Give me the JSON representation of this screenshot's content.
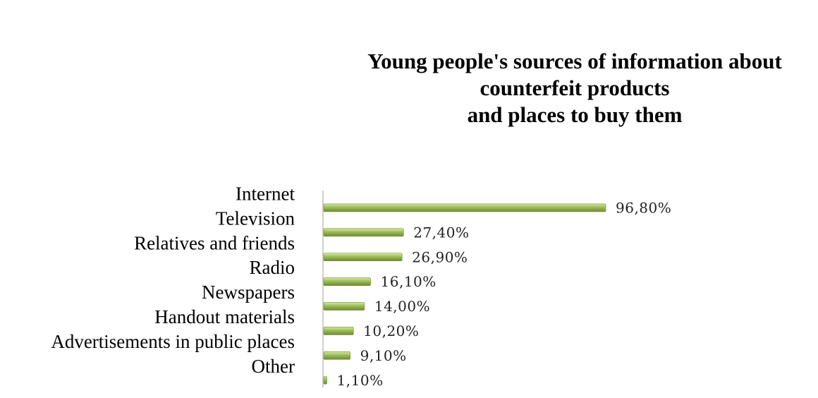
{
  "chart_data": {
    "type": "bar",
    "orientation": "horizontal",
    "title_lines": [
      "Young people's sources of information about",
      "counterfeit products",
      "and places to buy them"
    ],
    "categories": [
      "Internet",
      "Television",
      "Relatives and friends",
      "Radio",
      "Newspapers",
      "Handout materials",
      "Advertisements in public places",
      "Other"
    ],
    "values": [
      96.8,
      27.4,
      26.9,
      16.1,
      14.0,
      10.2,
      9.1,
      1.1
    ],
    "value_labels": [
      "96,80%",
      "27,40%",
      "26,90%",
      "16,10%",
      "14,00%",
      "10,20%",
      "9,10%",
      "1,10%"
    ],
    "xlim": [
      0,
      100
    ],
    "grid": false,
    "legend": "none",
    "colors": {
      "bar": "#9bbb59",
      "bar_light": "#cfe39a",
      "bar_dark": "#6f8a32",
      "axis": "#bfbfbf"
    }
  }
}
